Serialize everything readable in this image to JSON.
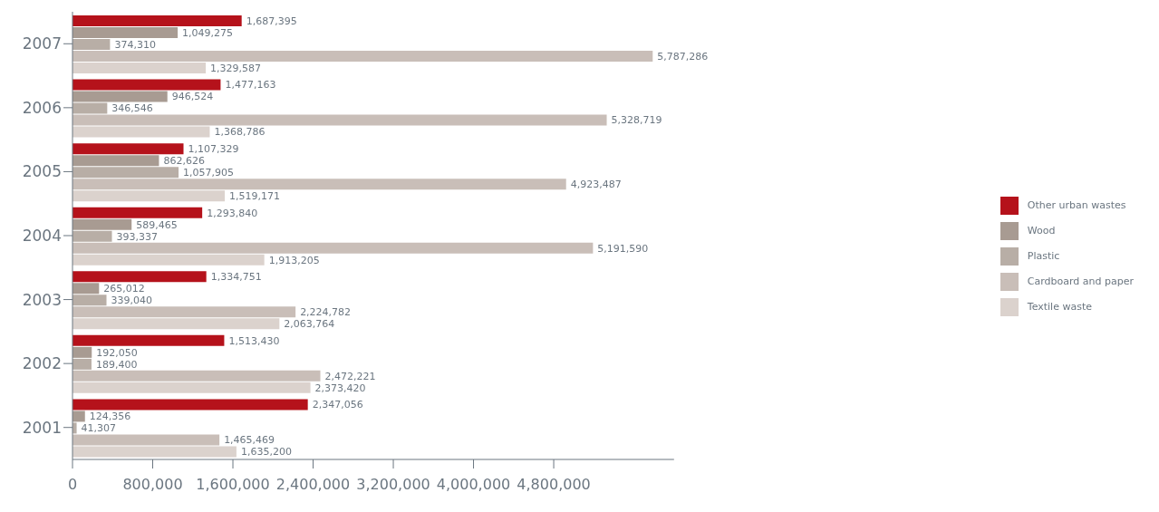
{
  "chart_data": {
    "type": "bar",
    "orientation": "horizontal",
    "categories": [
      "2007",
      "2006",
      "2005",
      "2004",
      "2003",
      "2002",
      "2001"
    ],
    "series": [
      {
        "name": "Other urban wastes",
        "color": "#b5121b",
        "values": [
          1687395,
          1477163,
          1107329,
          1293840,
          1334751,
          1513430,
          2347056
        ],
        "value_labels": [
          "1,687,395",
          "1,477,163",
          "1,107,329",
          "1,293,840",
          "1,334,751",
          "1,513,430",
          "2,347,056"
        ]
      },
      {
        "name": "Wood",
        "color": "#a89b92",
        "values": [
          1049275,
          946524,
          862626,
          589465,
          265012,
          192050,
          124356
        ],
        "value_labels": [
          "1,049,275",
          "946,524",
          "862,626",
          "589,465",
          "265,012",
          "192,050",
          "124,356"
        ]
      },
      {
        "name": "Plastic",
        "color": "#b8aea6",
        "values": [
          374310,
          346546,
          1057905,
          393337,
          339040,
          189400,
          41307
        ],
        "value_labels": [
          "374,310",
          "346,546",
          "1,057,905",
          "393,337",
          "339,040",
          "189,400",
          "41,307"
        ]
      },
      {
        "name": "Cardboard and paper",
        "color": "#c9beb8",
        "values": [
          5787286,
          5328719,
          4923487,
          5191590,
          2224782,
          2472221,
          1465469
        ],
        "value_labels": [
          "5,787,286",
          "5,328,719",
          "4,923,487",
          "5,191,590",
          "2,224,782",
          "2,472,221",
          "1,465,469"
        ]
      },
      {
        "name": "Textile waste",
        "color": "#dbd2cd",
        "values": [
          1329587,
          1368786,
          1519171,
          1913205,
          2063764,
          2373420,
          1635200
        ],
        "value_labels": [
          "1,329,587",
          "1,368,786",
          "1,519,171",
          "1,913,205",
          "2,063,764",
          "2,373,420",
          "1,635,200"
        ]
      }
    ],
    "xlim": [
      0,
      6000000
    ],
    "xticks": [
      0,
      {
        "value": 800000,
        "label": "800,000"
      },
      {
        "value": 1600000,
        "label": "1,600,000"
      },
      {
        "value": 2400000,
        "label": "2,400,000"
      },
      {
        "value": 3200000,
        "label": "3,200,000"
      },
      {
        "value": 4000000,
        "label": "4,000,000"
      },
      {
        "value": 4800000,
        "label": "4,800,000"
      }
    ],
    "legend": "right"
  }
}
